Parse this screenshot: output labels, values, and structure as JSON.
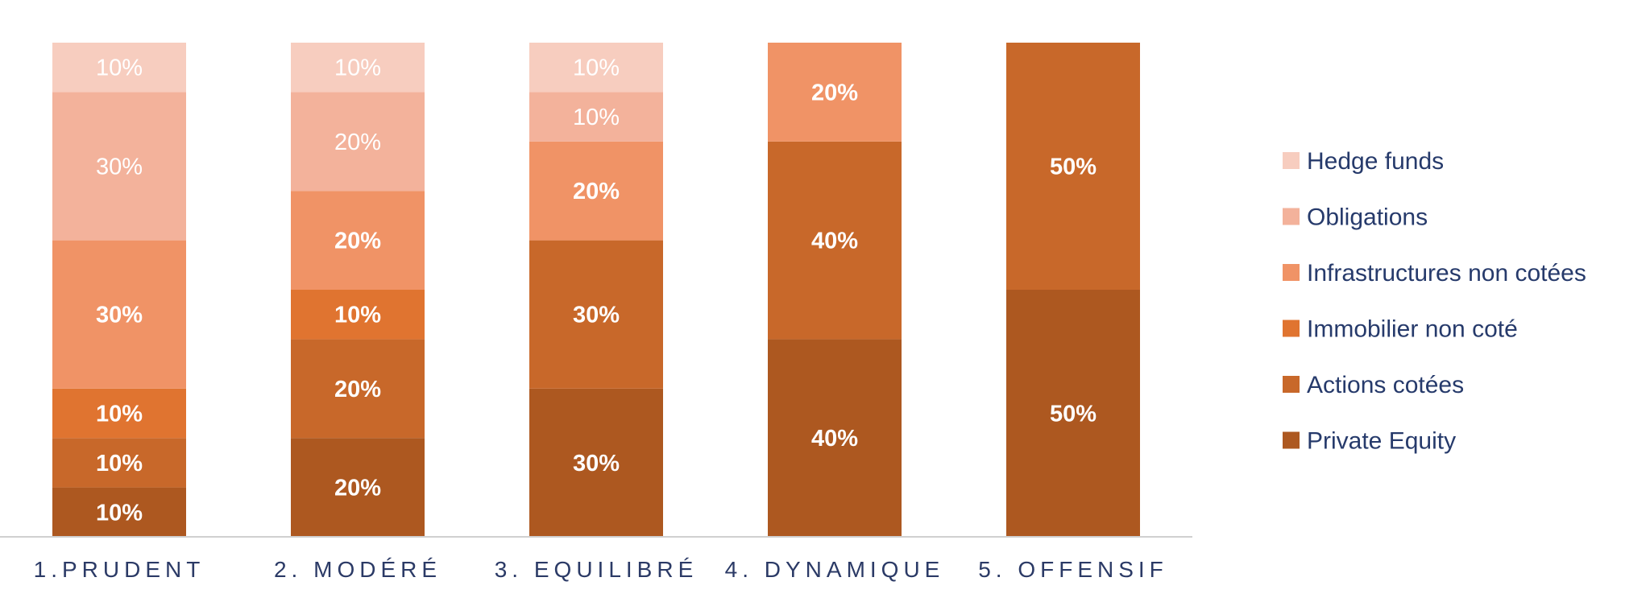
{
  "chart_data": {
    "type": "bar",
    "stacked": true,
    "categories": [
      "1.PRUDENT",
      "2. MODÉRÉ",
      "3. EQUILIBRÉ",
      "4. DYNAMIQUE",
      "5. OFFENSIF"
    ],
    "ylim": [
      0,
      100
    ],
    "legend_position": "right",
    "series": [
      {
        "name": "Private Equity",
        "color": "#ad5820",
        "values": [
          10,
          20,
          30,
          40,
          50
        ]
      },
      {
        "name": "Actions cotées",
        "color": "#c8682a",
        "values": [
          10,
          20,
          30,
          40,
          50
        ]
      },
      {
        "name": "Immobilier non coté",
        "color": "#e07430",
        "values": [
          10,
          10,
          0,
          0,
          0
        ]
      },
      {
        "name": "Infrastructures non cotées",
        "color": "#f09366",
        "values": [
          30,
          20,
          20,
          20,
          0
        ]
      },
      {
        "name": "Obligations",
        "color": "#f3b29b",
        "values": [
          30,
          20,
          10,
          0,
          0
        ]
      },
      {
        "name": "Hedge funds",
        "color": "#f7cdbf",
        "values": [
          10,
          10,
          10,
          0,
          0
        ]
      }
    ],
    "data_label_format": "{v}%"
  },
  "colors": {
    "axis_line": "#d0d0d0",
    "category_text": "#2b3a66",
    "legend_text": "#263a6b",
    "label_text": "#ffffff"
  }
}
